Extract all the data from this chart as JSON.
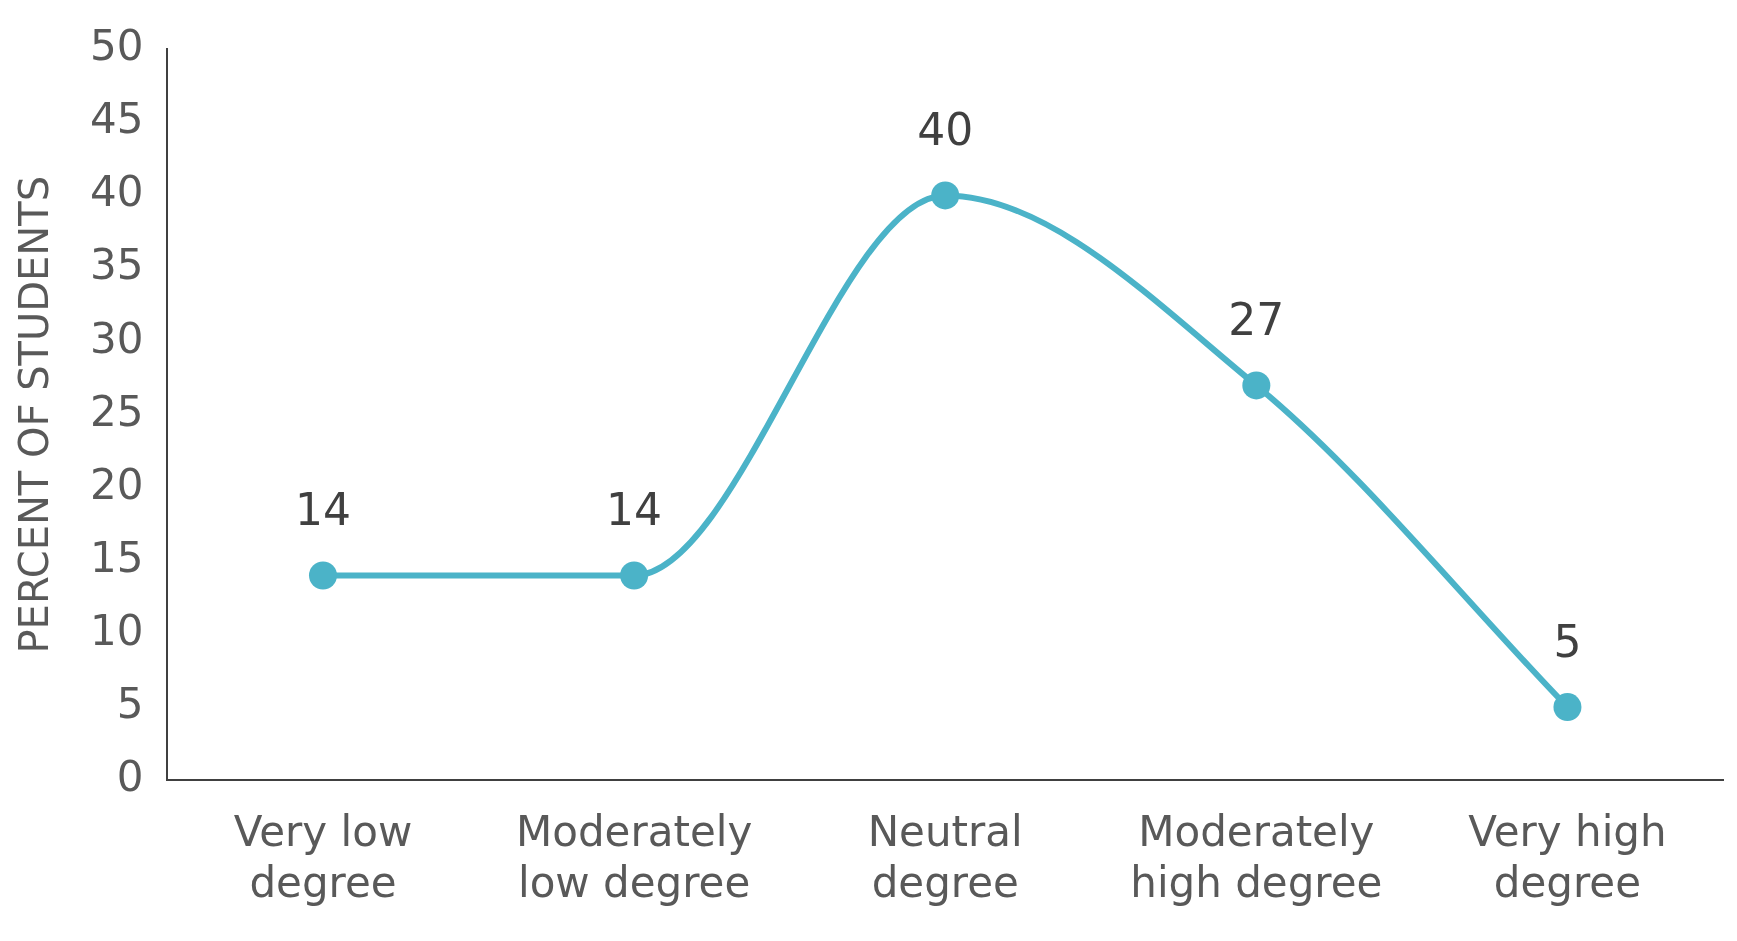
{
  "chart_data": {
    "type": "line",
    "ylabel": "PERCENT OF STUDENTS",
    "categories": [
      "Very low degree",
      "Moderately low degree",
      "Neutral degree",
      "Moderately high degree",
      "Very high degree"
    ],
    "series": [
      {
        "color": "#4bb3c8",
        "values": [
          14,
          14,
          40,
          27,
          5
        ]
      }
    ],
    "ylim": [
      0,
      50
    ],
    "yticks": [
      0,
      5,
      10,
      15,
      20,
      25,
      30,
      35,
      40,
      45,
      50
    ],
    "grid": false,
    "legend": false,
    "marker": "circle",
    "line_style": "solid",
    "data_labels": true
  }
}
